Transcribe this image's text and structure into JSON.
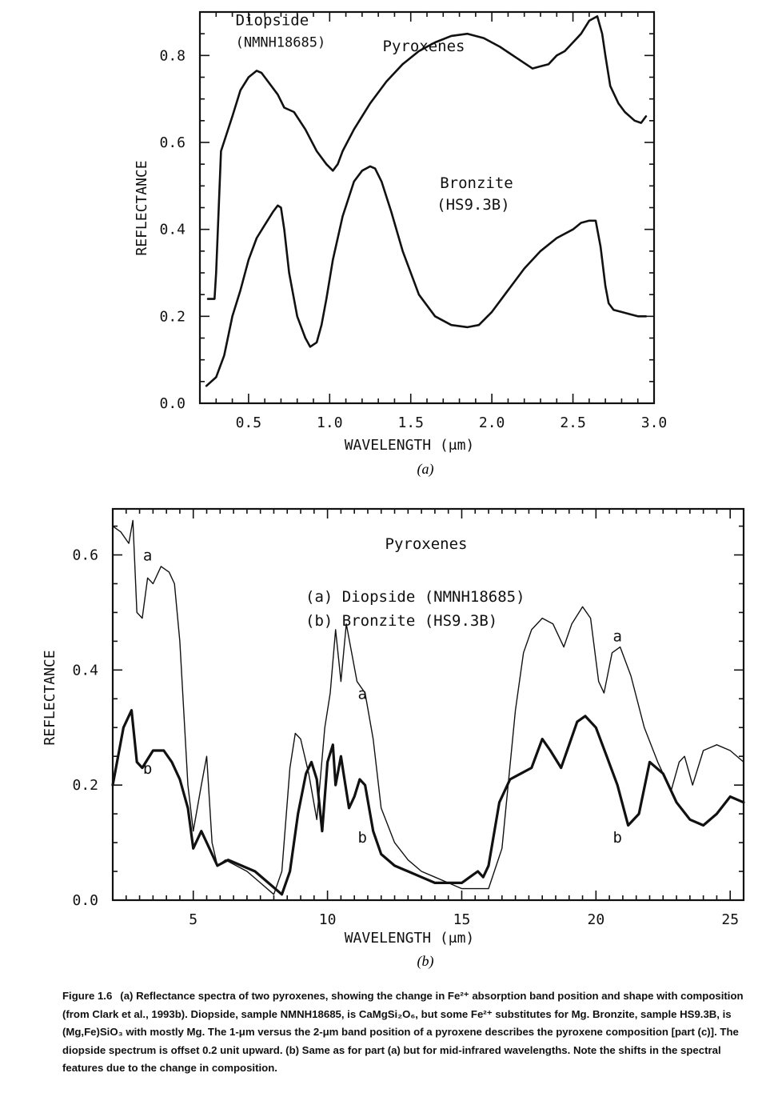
{
  "chart_data": [
    {
      "type": "line",
      "panel_label": "(a)",
      "title": "Pyroxenes",
      "xlabel": "WAVELENGTH (μm)",
      "ylabel": "REFLECTANCE",
      "xlim": [
        0.2,
        3.0
      ],
      "ylim": [
        0.0,
        0.9
      ],
      "xticks": [
        "0.5",
        "1.0",
        "1.5",
        "2.0",
        "2.5",
        "3.0"
      ],
      "yticks": [
        "0.0",
        "0.2",
        "0.4",
        "0.6",
        "0.8"
      ],
      "grid": false,
      "series": [
        {
          "name": "Diopside (NMNH18685)",
          "x": [
            0.25,
            0.29,
            0.3,
            0.33,
            0.4,
            0.45,
            0.5,
            0.55,
            0.58,
            0.62,
            0.68,
            0.72,
            0.78,
            0.85,
            0.92,
            0.98,
            1.02,
            1.05,
            1.08,
            1.15,
            1.25,
            1.35,
            1.45,
            1.55,
            1.65,
            1.75,
            1.85,
            1.95,
            2.05,
            2.15,
            2.25,
            2.3,
            2.35,
            2.4,
            2.45,
            2.5,
            2.55,
            2.6,
            2.65,
            2.68,
            2.7,
            2.73,
            2.78,
            2.82,
            2.88,
            2.92,
            2.95
          ],
          "y": [
            0.24,
            0.24,
            0.3,
            0.58,
            0.66,
            0.72,
            0.75,
            0.765,
            0.76,
            0.74,
            0.71,
            0.68,
            0.67,
            0.63,
            0.58,
            0.55,
            0.535,
            0.55,
            0.58,
            0.63,
            0.69,
            0.74,
            0.78,
            0.81,
            0.83,
            0.845,
            0.85,
            0.84,
            0.82,
            0.795,
            0.77,
            0.775,
            0.78,
            0.8,
            0.81,
            0.83,
            0.85,
            0.88,
            0.89,
            0.85,
            0.8,
            0.73,
            0.69,
            0.67,
            0.65,
            0.645,
            0.66
          ]
        },
        {
          "name": "Bronzite (HS9.3B)",
          "x": [
            0.24,
            0.3,
            0.35,
            0.4,
            0.45,
            0.5,
            0.55,
            0.6,
            0.65,
            0.68,
            0.7,
            0.72,
            0.75,
            0.8,
            0.85,
            0.88,
            0.92,
            0.95,
            0.98,
            1.02,
            1.08,
            1.15,
            1.2,
            1.25,
            1.28,
            1.32,
            1.38,
            1.45,
            1.55,
            1.65,
            1.75,
            1.85,
            1.92,
            2.0,
            2.1,
            2.2,
            2.3,
            2.4,
            2.5,
            2.55,
            2.6,
            2.64,
            2.67,
            2.7,
            2.72,
            2.75,
            2.8,
            2.85,
            2.9,
            2.95
          ],
          "y": [
            0.04,
            0.06,
            0.11,
            0.2,
            0.26,
            0.33,
            0.38,
            0.41,
            0.44,
            0.455,
            0.45,
            0.4,
            0.3,
            0.2,
            0.15,
            0.13,
            0.14,
            0.18,
            0.24,
            0.33,
            0.43,
            0.51,
            0.535,
            0.545,
            0.54,
            0.51,
            0.44,
            0.35,
            0.25,
            0.2,
            0.18,
            0.175,
            0.18,
            0.21,
            0.26,
            0.31,
            0.35,
            0.38,
            0.4,
            0.415,
            0.42,
            0.42,
            0.36,
            0.27,
            0.23,
            0.215,
            0.21,
            0.205,
            0.2,
            0.2
          ]
        }
      ],
      "annotations": [
        {
          "text": "Diopside",
          "x": 0.42,
          "y": 0.87
        },
        {
          "text": "(NMNH18685)",
          "x": 0.42,
          "y": 0.82
        },
        {
          "text": "Bronzite",
          "x": 1.68,
          "y": 0.495
        },
        {
          "text": "(HS9.3B)",
          "x": 1.66,
          "y": 0.445
        }
      ]
    },
    {
      "type": "line",
      "panel_label": "(b)",
      "title": "Pyroxenes",
      "xlabel": "WAVELENGTH (μm)",
      "ylabel": "REFLECTANCE",
      "xlim": [
        2.0,
        25.5
      ],
      "ylim": [
        0.0,
        0.68
      ],
      "xticks": [
        "5",
        "10",
        "15",
        "20",
        "25"
      ],
      "yticks": [
        "0.0",
        "0.2",
        "0.4",
        "0.6"
      ],
      "grid": false,
      "legend": [
        "(a) Diopside (NMNH18685)",
        "(b) Bronzite (HS9.3B)"
      ],
      "series": [
        {
          "name": "(a) Diopside (NMNH18685)",
          "x": [
            2.0,
            2.3,
            2.6,
            2.75,
            2.9,
            3.1,
            3.3,
            3.5,
            3.8,
            4.1,
            4.3,
            4.5,
            4.8,
            5.0,
            5.3,
            5.5,
            5.7,
            5.9,
            6.2,
            6.6,
            7.0,
            7.5,
            8.0,
            8.3,
            8.6,
            8.8,
            9.0,
            9.3,
            9.6,
            9.9,
            10.1,
            10.3,
            10.5,
            10.7,
            10.9,
            11.1,
            11.4,
            11.7,
            12.0,
            12.5,
            13.0,
            13.5,
            14.0,
            14.5,
            15.0,
            15.5,
            16.0,
            16.5,
            17.0,
            17.3,
            17.6,
            18.0,
            18.4,
            18.8,
            19.1,
            19.5,
            19.8,
            20.1,
            20.3,
            20.6,
            20.9,
            21.3,
            21.8,
            22.3,
            22.8,
            23.1,
            23.3,
            23.6,
            24.0,
            24.5,
            25.0,
            25.5
          ],
          "y": [
            0.65,
            0.64,
            0.62,
            0.66,
            0.5,
            0.49,
            0.56,
            0.55,
            0.58,
            0.57,
            0.55,
            0.45,
            0.2,
            0.12,
            0.2,
            0.25,
            0.1,
            0.06,
            0.07,
            0.06,
            0.05,
            0.03,
            0.01,
            0.05,
            0.23,
            0.29,
            0.28,
            0.22,
            0.14,
            0.3,
            0.36,
            0.47,
            0.38,
            0.48,
            0.43,
            0.38,
            0.36,
            0.28,
            0.16,
            0.1,
            0.07,
            0.05,
            0.04,
            0.03,
            0.02,
            0.02,
            0.02,
            0.09,
            0.33,
            0.43,
            0.47,
            0.49,
            0.48,
            0.44,
            0.48,
            0.51,
            0.49,
            0.38,
            0.36,
            0.43,
            0.44,
            0.39,
            0.3,
            0.24,
            0.19,
            0.24,
            0.25,
            0.2,
            0.26,
            0.27,
            0.26,
            0.24
          ]
        },
        {
          "name": "(b) Bronzite (HS9.3B)",
          "x": [
            2.0,
            2.4,
            2.7,
            2.9,
            3.1,
            3.5,
            3.9,
            4.2,
            4.5,
            4.8,
            5.0,
            5.3,
            5.6,
            5.9,
            6.3,
            6.8,
            7.3,
            7.8,
            8.3,
            8.6,
            8.9,
            9.2,
            9.4,
            9.6,
            9.8,
            10.0,
            10.2,
            10.3,
            10.5,
            10.6,
            10.8,
            11.0,
            11.2,
            11.4,
            11.7,
            12.0,
            12.5,
            13.0,
            13.5,
            14.0,
            14.5,
            15.0,
            15.3,
            15.6,
            15.8,
            16.0,
            16.4,
            16.8,
            17.2,
            17.6,
            18.0,
            18.3,
            18.7,
            19.0,
            19.3,
            19.6,
            20.0,
            20.4,
            20.8,
            21.2,
            21.6,
            22.0,
            22.5,
            23.0,
            23.5,
            24.0,
            24.5,
            25.0,
            25.5
          ],
          "y": [
            0.2,
            0.3,
            0.33,
            0.24,
            0.23,
            0.26,
            0.26,
            0.24,
            0.21,
            0.16,
            0.09,
            0.12,
            0.09,
            0.06,
            0.07,
            0.06,
            0.05,
            0.03,
            0.01,
            0.05,
            0.15,
            0.22,
            0.24,
            0.21,
            0.12,
            0.24,
            0.27,
            0.2,
            0.25,
            0.22,
            0.16,
            0.18,
            0.21,
            0.2,
            0.12,
            0.08,
            0.06,
            0.05,
            0.04,
            0.03,
            0.03,
            0.03,
            0.04,
            0.05,
            0.04,
            0.06,
            0.17,
            0.21,
            0.22,
            0.23,
            0.28,
            0.26,
            0.23,
            0.27,
            0.31,
            0.32,
            0.3,
            0.25,
            0.2,
            0.13,
            0.15,
            0.24,
            0.22,
            0.17,
            0.14,
            0.13,
            0.15,
            0.18,
            0.17
          ]
        }
      ],
      "annotations": [
        {
          "text": "a",
          "x": 3.3,
          "y": 0.59
        },
        {
          "text": "b",
          "x": 3.3,
          "y": 0.22
        },
        {
          "text": "a",
          "x": 11.3,
          "y": 0.35
        },
        {
          "text": "b",
          "x": 11.3,
          "y": 0.1
        },
        {
          "text": "a",
          "x": 20.8,
          "y": 0.45
        },
        {
          "text": "b",
          "x": 20.8,
          "y": 0.1
        }
      ]
    }
  ],
  "caption": {
    "label": "Figure 1.6",
    "text": "(a) Reflectance spectra of two pyroxenes, showing the change in Fe²⁺ absorption band position and shape with composition (from Clark et al., 1993b). Diopside, sample NMNH18685, is CaMgSi₂O₆, but some Fe²⁺ substitutes for Mg. Bronzite, sample HS9.3B, is (Mg,Fe)SiO₃ with mostly Mg. The 1-μm versus the 2-μm band position of a pyroxene describes the pyroxene composition [part (c)]. The diopside spectrum is offset 0.2 unit upward. (b) Same as for part (a) but for mid-infrared wavelengths. Note the shifts in the spectral features due to the change in composition."
  }
}
